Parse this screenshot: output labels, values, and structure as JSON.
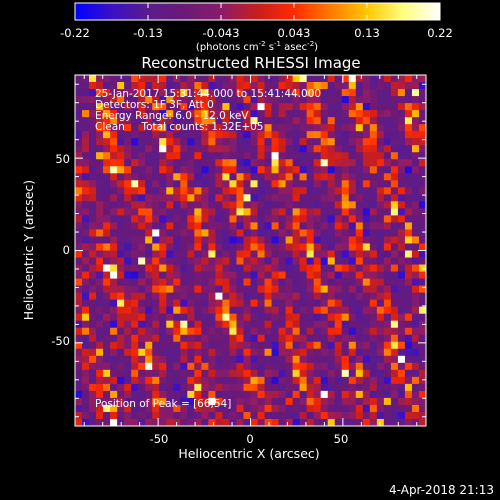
{
  "chart_data": {
    "type": "heatmap",
    "title": "Reconstructed RHESSI Image",
    "xlabel": "Heliocentric X (arcsec)",
    "ylabel": "Heliocentric Y (arcsec)",
    "xlim": [
      -95,
      95
    ],
    "ylim": [
      -95,
      95
    ],
    "xticks": [
      "-50",
      "0",
      "50"
    ],
    "yticks": [
      "50",
      "0",
      "-50"
    ],
    "colorbar": {
      "ticks": [
        "-0.22",
        "-0.13",
        "-0.043",
        "0.043",
        "0.13",
        "0.22"
      ],
      "range": [
        -0.22,
        0.22
      ],
      "colors": [
        "#0000ff",
        "#3b10c8",
        "#5a1c8c",
        "#6a1a78",
        "#8a1c6a",
        "#c81e1e",
        "#ff2a00",
        "#ff7a00",
        "#ffc800",
        "#ffff80",
        "#ffffff"
      ],
      "unit": {
        "pre": "(photons cm",
        "sup1": "-2",
        "mid1": " s",
        "sup2": "-1",
        "mid2": " asec",
        "sup3": "-2",
        "post": ")"
      }
    },
    "annotations": [
      "25-Jan-2017 15:31:44.000 to 15:41:44.000",
      "Detectors: 1F 3F, Att 0",
      "Energy Range: 6.0 - 12.0 keV",
      "Clean     Total counts: 1.32E+05"
    ],
    "peak_label": "Position of Peak = [66,54]",
    "grid": false
  },
  "footer": {
    "date": "4-Apr-2018 21:13"
  }
}
